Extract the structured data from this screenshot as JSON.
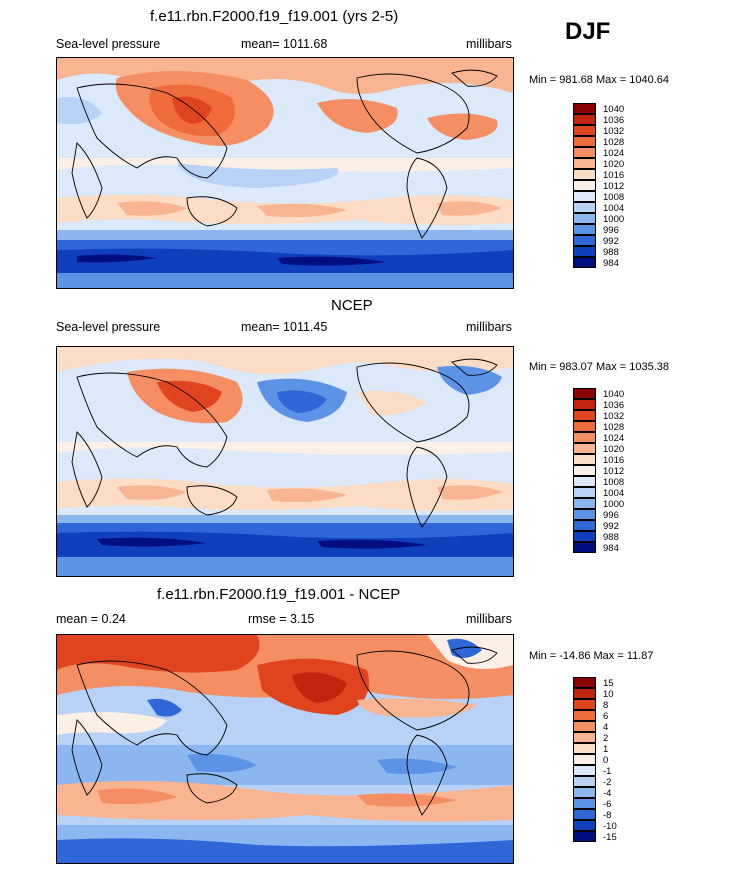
{
  "season": "DJF",
  "panels": [
    {
      "id": "model",
      "title": "f.e11.rbn.F2000.f19_f19.001 (yrs 2-5)",
      "left_label": "Sea-level pressure",
      "center_label": "mean= 1011.68",
      "right_label": "millibars",
      "minmax": "Min = 981.68 Max = 1040.64",
      "colorbar": {
        "labels": [
          "1040",
          "1036",
          "1032",
          "1028",
          "1024",
          "1020",
          "1016",
          "1012",
          "1008",
          "1004",
          "1000",
          "996",
          "992",
          "988",
          "984"
        ],
        "colors": [
          "#8b0000",
          "#c0230e",
          "#e0441e",
          "#f06a3c",
          "#f58f63",
          "#f9b592",
          "#fcdcc4",
          "#fbefe6",
          "#dbe9fb",
          "#b7d2f6",
          "#8bb6f0",
          "#5c93e6",
          "#2f66d8",
          "#0f3fbf",
          "#000f80"
        ]
      }
    },
    {
      "id": "obs",
      "title": "NCEP",
      "left_label": "Sea-level pressure",
      "center_label": "mean= 1011.45",
      "right_label": "millibars",
      "minmax": "Min = 983.07 Max = 1035.38",
      "colorbar": {
        "labels": [
          "1040",
          "1036",
          "1032",
          "1028",
          "1024",
          "1020",
          "1016",
          "1012",
          "1008",
          "1004",
          "1000",
          "996",
          "992",
          "988",
          "984"
        ],
        "colors": [
          "#8b0000",
          "#c0230e",
          "#e0441e",
          "#f06a3c",
          "#f58f63",
          "#f9b592",
          "#fcdcc4",
          "#fbefe6",
          "#dbe9fb",
          "#b7d2f6",
          "#8bb6f0",
          "#5c93e6",
          "#2f66d8",
          "#0f3fbf",
          "#000f80"
        ]
      }
    },
    {
      "id": "diff",
      "title": "f.e11.rbn.F2000.f19_f19.001 - NCEP",
      "left_label": "mean =   0.24",
      "center_label": "rmse =   3.15",
      "right_label": "millibars",
      "minmax": "Min = -14.86 Max =  11.87",
      "colorbar": {
        "labels": [
          "15",
          "10",
          "8",
          "6",
          "4",
          "2",
          "1",
          "0",
          "-1",
          "-2",
          "-4",
          "-6",
          "-8",
          "-10",
          "-15"
        ],
        "colors": [
          "#8b0000",
          "#c0230e",
          "#e0441e",
          "#f06a3c",
          "#f58f63",
          "#f9b592",
          "#fcdcc4",
          "#fbefe6",
          "#dbe9fb",
          "#b7d2f6",
          "#8bb6f0",
          "#5c93e6",
          "#2f66d8",
          "#0f3fbf",
          "#000f80"
        ]
      }
    }
  ]
}
